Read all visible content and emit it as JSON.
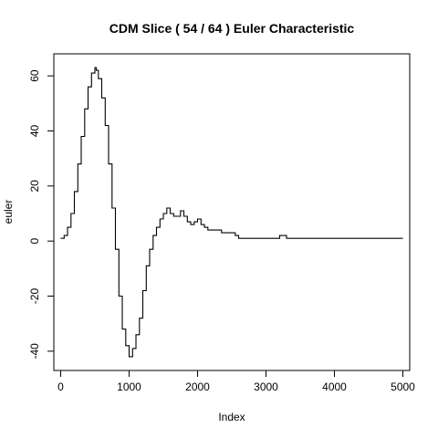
{
  "chart_data": {
    "type": "line",
    "title": "CDM Slice ( 54 / 64 ) Euler Characteristic",
    "xlabel": "Index",
    "ylabel": "euler",
    "xlim": [
      -100,
      5100
    ],
    "ylim": [
      -47,
      68
    ],
    "xticks": [
      0,
      1000,
      2000,
      3000,
      4000,
      5000
    ],
    "yticks": [
      -40,
      -20,
      0,
      20,
      40,
      60
    ],
    "grid": false,
    "series": [
      {
        "x": [
          0,
          50,
          100,
          150,
          200,
          250,
          300,
          350,
          400,
          450,
          500,
          520,
          550,
          600,
          650,
          700,
          750,
          800,
          850,
          900,
          950,
          1000,
          1050,
          1100,
          1150,
          1200,
          1250,
          1300,
          1350,
          1400,
          1450,
          1500,
          1550,
          1600,
          1650,
          1700,
          1750,
          1800,
          1850,
          1900,
          1950,
          2000,
          2050,
          2100,
          2150,
          2200,
          2250,
          2300,
          2350,
          2400,
          2450,
          2500,
          2550,
          2600,
          2700,
          2800,
          2900,
          3000,
          3100,
          3200,
          3250,
          3300,
          3400,
          3600,
          3800,
          4000,
          4200,
          4400,
          4600,
          4800,
          5000
        ],
        "y": [
          1,
          2,
          5,
          10,
          18,
          28,
          38,
          48,
          56,
          61,
          63,
          62,
          59,
          52,
          42,
          28,
          12,
          -3,
          -20,
          -32,
          -38,
          -42,
          -39,
          -34,
          -28,
          -18,
          -9,
          -3,
          2,
          5,
          8,
          10,
          12,
          10,
          9,
          9,
          11,
          9,
          7,
          6,
          7,
          8,
          6,
          5,
          4,
          4,
          4,
          4,
          3,
          3,
          3,
          3,
          2,
          1,
          1,
          1,
          1,
          1,
          1,
          2,
          2,
          1,
          1,
          1,
          1,
          1,
          1,
          1,
          1,
          1,
          1
        ]
      }
    ]
  }
}
